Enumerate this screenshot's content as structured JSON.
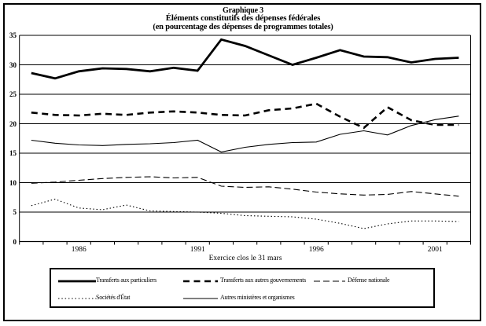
{
  "title": {
    "line1": "Graphique 3",
    "line2": "Éléments constitutifs des dépenses fédérales",
    "line3": "(en pourcentage des dépenses de programmes totales)"
  },
  "chart_data": {
    "type": "line",
    "title": "Graphique 3 — Éléments constitutifs des dépenses fédérales (en pourcentage des dépenses de programmes totales)",
    "xlabel": "Exercice clos le 31 mars",
    "ylabel": "",
    "ylim": [
      0,
      35
    ],
    "yticks": [
      0,
      5,
      10,
      15,
      20,
      25,
      30,
      35
    ],
    "x": [
      1984,
      1985,
      1986,
      1987,
      1988,
      1989,
      1990,
      1991,
      1992,
      1993,
      1994,
      1995,
      1996,
      1997,
      1998,
      1999,
      2000,
      2001,
      2002
    ],
    "x_axis_labels": [
      1986,
      1991,
      1996,
      2001
    ],
    "grid": true,
    "legend_position": "bottom-box",
    "line_color": "#000000",
    "series": [
      {
        "name": "Transferts aux particuliers",
        "style": "thick-solid",
        "values": [
          28.6,
          27.7,
          28.9,
          29.4,
          29.3,
          28.9,
          29.5,
          29.0,
          34.3,
          33.2,
          31.6,
          30.0,
          31.2,
          32.5,
          31.4,
          31.3,
          30.4,
          31.0,
          31.2
        ]
      },
      {
        "name": "Transferts aux autres gouvernements",
        "style": "thick-dashed",
        "values": [
          21.9,
          21.5,
          21.4,
          21.7,
          21.5,
          21.9,
          22.1,
          21.9,
          21.5,
          21.4,
          22.3,
          22.6,
          23.4,
          21.2,
          19.3,
          22.8,
          20.6,
          19.8,
          19.8
        ]
      },
      {
        "name": "Défense nationale",
        "style": "dashed",
        "values": [
          9.9,
          10.1,
          10.4,
          10.7,
          10.9,
          11.0,
          10.8,
          10.9,
          9.4,
          9.2,
          9.3,
          8.9,
          8.4,
          8.1,
          7.9,
          8.0,
          8.5,
          8.1,
          7.7
        ]
      },
      {
        "name": "Sociétés d'État",
        "style": "dotted",
        "values": [
          6.1,
          7.2,
          5.7,
          5.4,
          6.2,
          5.2,
          5.1,
          5.0,
          4.8,
          4.4,
          4.3,
          4.2,
          3.8,
          3.1,
          2.2,
          3.0,
          3.5,
          3.5,
          3.4
        ]
      },
      {
        "name": "Autres ministères et organismes",
        "style": "solid",
        "values": [
          17.2,
          16.7,
          16.4,
          16.3,
          16.5,
          16.6,
          16.8,
          17.2,
          15.2,
          16.0,
          16.5,
          16.8,
          16.9,
          18.2,
          18.8,
          18.1,
          19.7,
          20.7,
          21.3
        ]
      }
    ]
  }
}
